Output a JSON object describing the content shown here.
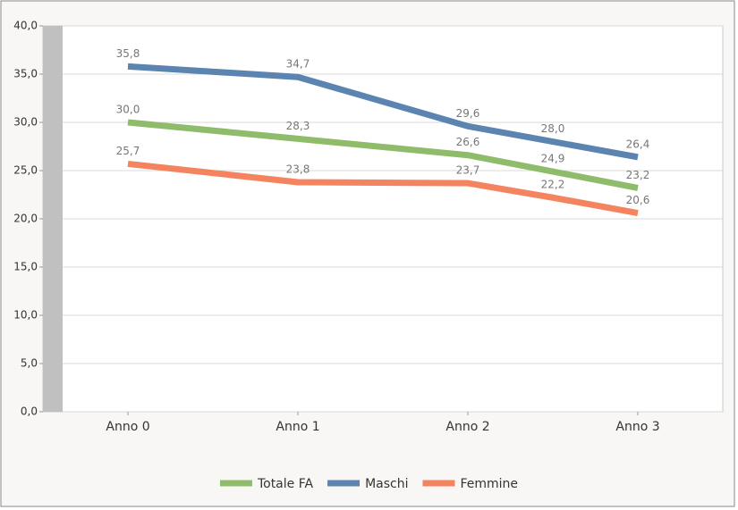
{
  "chart_data": {
    "type": "line",
    "x": [
      0,
      1,
      2,
      2.5,
      3
    ],
    "xlim": [
      -0.5,
      3.5
    ],
    "xticks": [
      {
        "value": 0,
        "label": "Anno 0"
      },
      {
        "value": 1,
        "label": "Anno 1"
      },
      {
        "value": 2,
        "label": "Anno 2"
      },
      {
        "value": 3,
        "label": "Anno 3"
      }
    ],
    "ylim": [
      0,
      40
    ],
    "yticks": [
      {
        "value": 0,
        "label": "0,0"
      },
      {
        "value": 5,
        "label": "5,0"
      },
      {
        "value": 10,
        "label": "10,0"
      },
      {
        "value": 15,
        "label": "15,0"
      },
      {
        "value": 20,
        "label": "20,0"
      },
      {
        "value": 25,
        "label": "25,0"
      },
      {
        "value": 30,
        "label": "30,0"
      },
      {
        "value": 35,
        "label": "35,0"
      },
      {
        "value": 40,
        "label": "40,0"
      }
    ],
    "grid": true,
    "legend": "bottom",
    "series": [
      {
        "name": "Totale FA",
        "color": "#8fbc6b",
        "values": [
          30.0,
          28.3,
          26.6,
          24.9,
          23.2
        ],
        "value_labels": [
          "30,0",
          "28,3",
          "26,6",
          "24,9",
          "23,2"
        ]
      },
      {
        "name": "Maschi",
        "color": "#5b84b0",
        "values": [
          35.8,
          34.7,
          29.6,
          28.0,
          26.4
        ],
        "value_labels": [
          "35,8",
          "34,7",
          "29,6",
          "28,0",
          "26,4"
        ]
      },
      {
        "name": "Femmine",
        "color": "#f4845f",
        "values": [
          25.7,
          23.8,
          23.7,
          22.2,
          20.6
        ],
        "value_labels": [
          "25,7",
          "23,8",
          "23,7",
          "22,2",
          "20,6"
        ]
      }
    ]
  }
}
